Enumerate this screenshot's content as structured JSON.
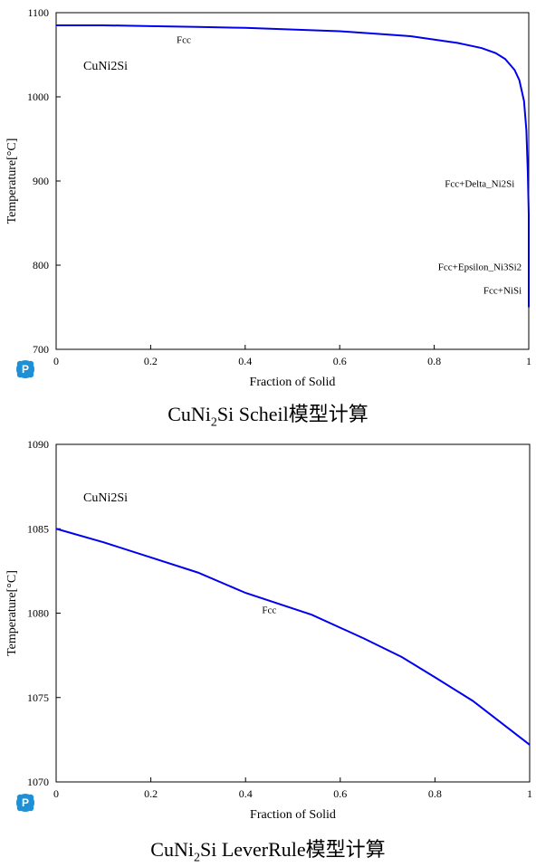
{
  "colors": {
    "curve": "#0000ee",
    "axis": "#000000",
    "logo": "#1e90d6"
  },
  "logo_icon": "pandat-logo-icon",
  "chart_data": [
    {
      "type": "line",
      "compound_label": "CuNi2Si",
      "caption": {
        "pre": "CuNi",
        "sub": "2",
        "post": "Si Scheil模型计算"
      },
      "xlabel": "Fraction of Solid",
      "ylabel": "Temperature[°C]",
      "xlim": [
        0,
        1
      ],
      "ylim": [
        700,
        1100
      ],
      "x_ticks": [
        0,
        0.2,
        0.4,
        0.6,
        0.8,
        1
      ],
      "x_tick_labels": [
        "0",
        "0.2",
        "0.4",
        "0.6",
        "0.8",
        "1"
      ],
      "y_ticks": [
        700,
        800,
        900,
        1000,
        1100
      ],
      "y_tick_labels": [
        "700",
        "800",
        "900",
        "1000",
        "1100"
      ],
      "grid": false,
      "series": [
        {
          "x": [
            0,
            0.1,
            0.2,
            0.3,
            0.4,
            0.5,
            0.6,
            0.7,
            0.75,
            0.8,
            0.85,
            0.9,
            0.93,
            0.95,
            0.97,
            0.98,
            0.99,
            0.995,
            0.998,
            1.0,
            1.0
          ],
          "y": [
            1085,
            1085,
            1084,
            1083,
            1082,
            1080,
            1078,
            1074,
            1072,
            1068,
            1064,
            1058,
            1052,
            1045,
            1032,
            1020,
            995,
            960,
            910,
            860,
            750
          ]
        }
      ],
      "annotations": [
        {
          "text": "Fcc",
          "x": 0.27,
          "y": 1064
        },
        {
          "text": "Fcc+Delta_Ni2Si",
          "x": 0.97,
          "y": 893,
          "anchor": "end"
        },
        {
          "text": "Fcc+Epsilon_Ni3Si2",
          "x": 0.985,
          "y": 794,
          "anchor": "end"
        },
        {
          "text": "Fcc+NiSi",
          "x": 0.985,
          "y": 766,
          "anchor": "end"
        }
      ]
    },
    {
      "type": "line",
      "compound_label": "CuNi2Si",
      "caption": {
        "pre": "CuNi",
        "sub": "2",
        "post": "Si LeverRule模型计算"
      },
      "xlabel": "Fraction of Solid",
      "ylabel": "Temperature[°C]",
      "xlim": [
        0,
        1
      ],
      "ylim": [
        1070,
        1090
      ],
      "x_ticks": [
        0,
        0.2,
        0.4,
        0.6,
        0.8,
        1
      ],
      "x_tick_labels": [
        "0",
        "0.2",
        "0.4",
        "0.6",
        "0.8",
        "1"
      ],
      "y_ticks": [
        1070,
        1075,
        1080,
        1085,
        1090
      ],
      "y_tick_labels": [
        "1070",
        "1075",
        "1080",
        "1085",
        "1090"
      ],
      "grid": false,
      "series": [
        {
          "x": [
            0,
            0.1,
            0.2,
            0.3,
            0.4,
            0.54,
            0.65,
            0.73,
            0.8,
            0.88,
            1.0
          ],
          "y": [
            1085,
            1084.2,
            1083.3,
            1082.4,
            1081.2,
            1079.9,
            1078.5,
            1077.4,
            1076.2,
            1074.8,
            1072.2
          ]
        }
      ],
      "annotations": [
        {
          "text": "Fcc",
          "x": 0.45,
          "y": 1080
        }
      ]
    }
  ]
}
